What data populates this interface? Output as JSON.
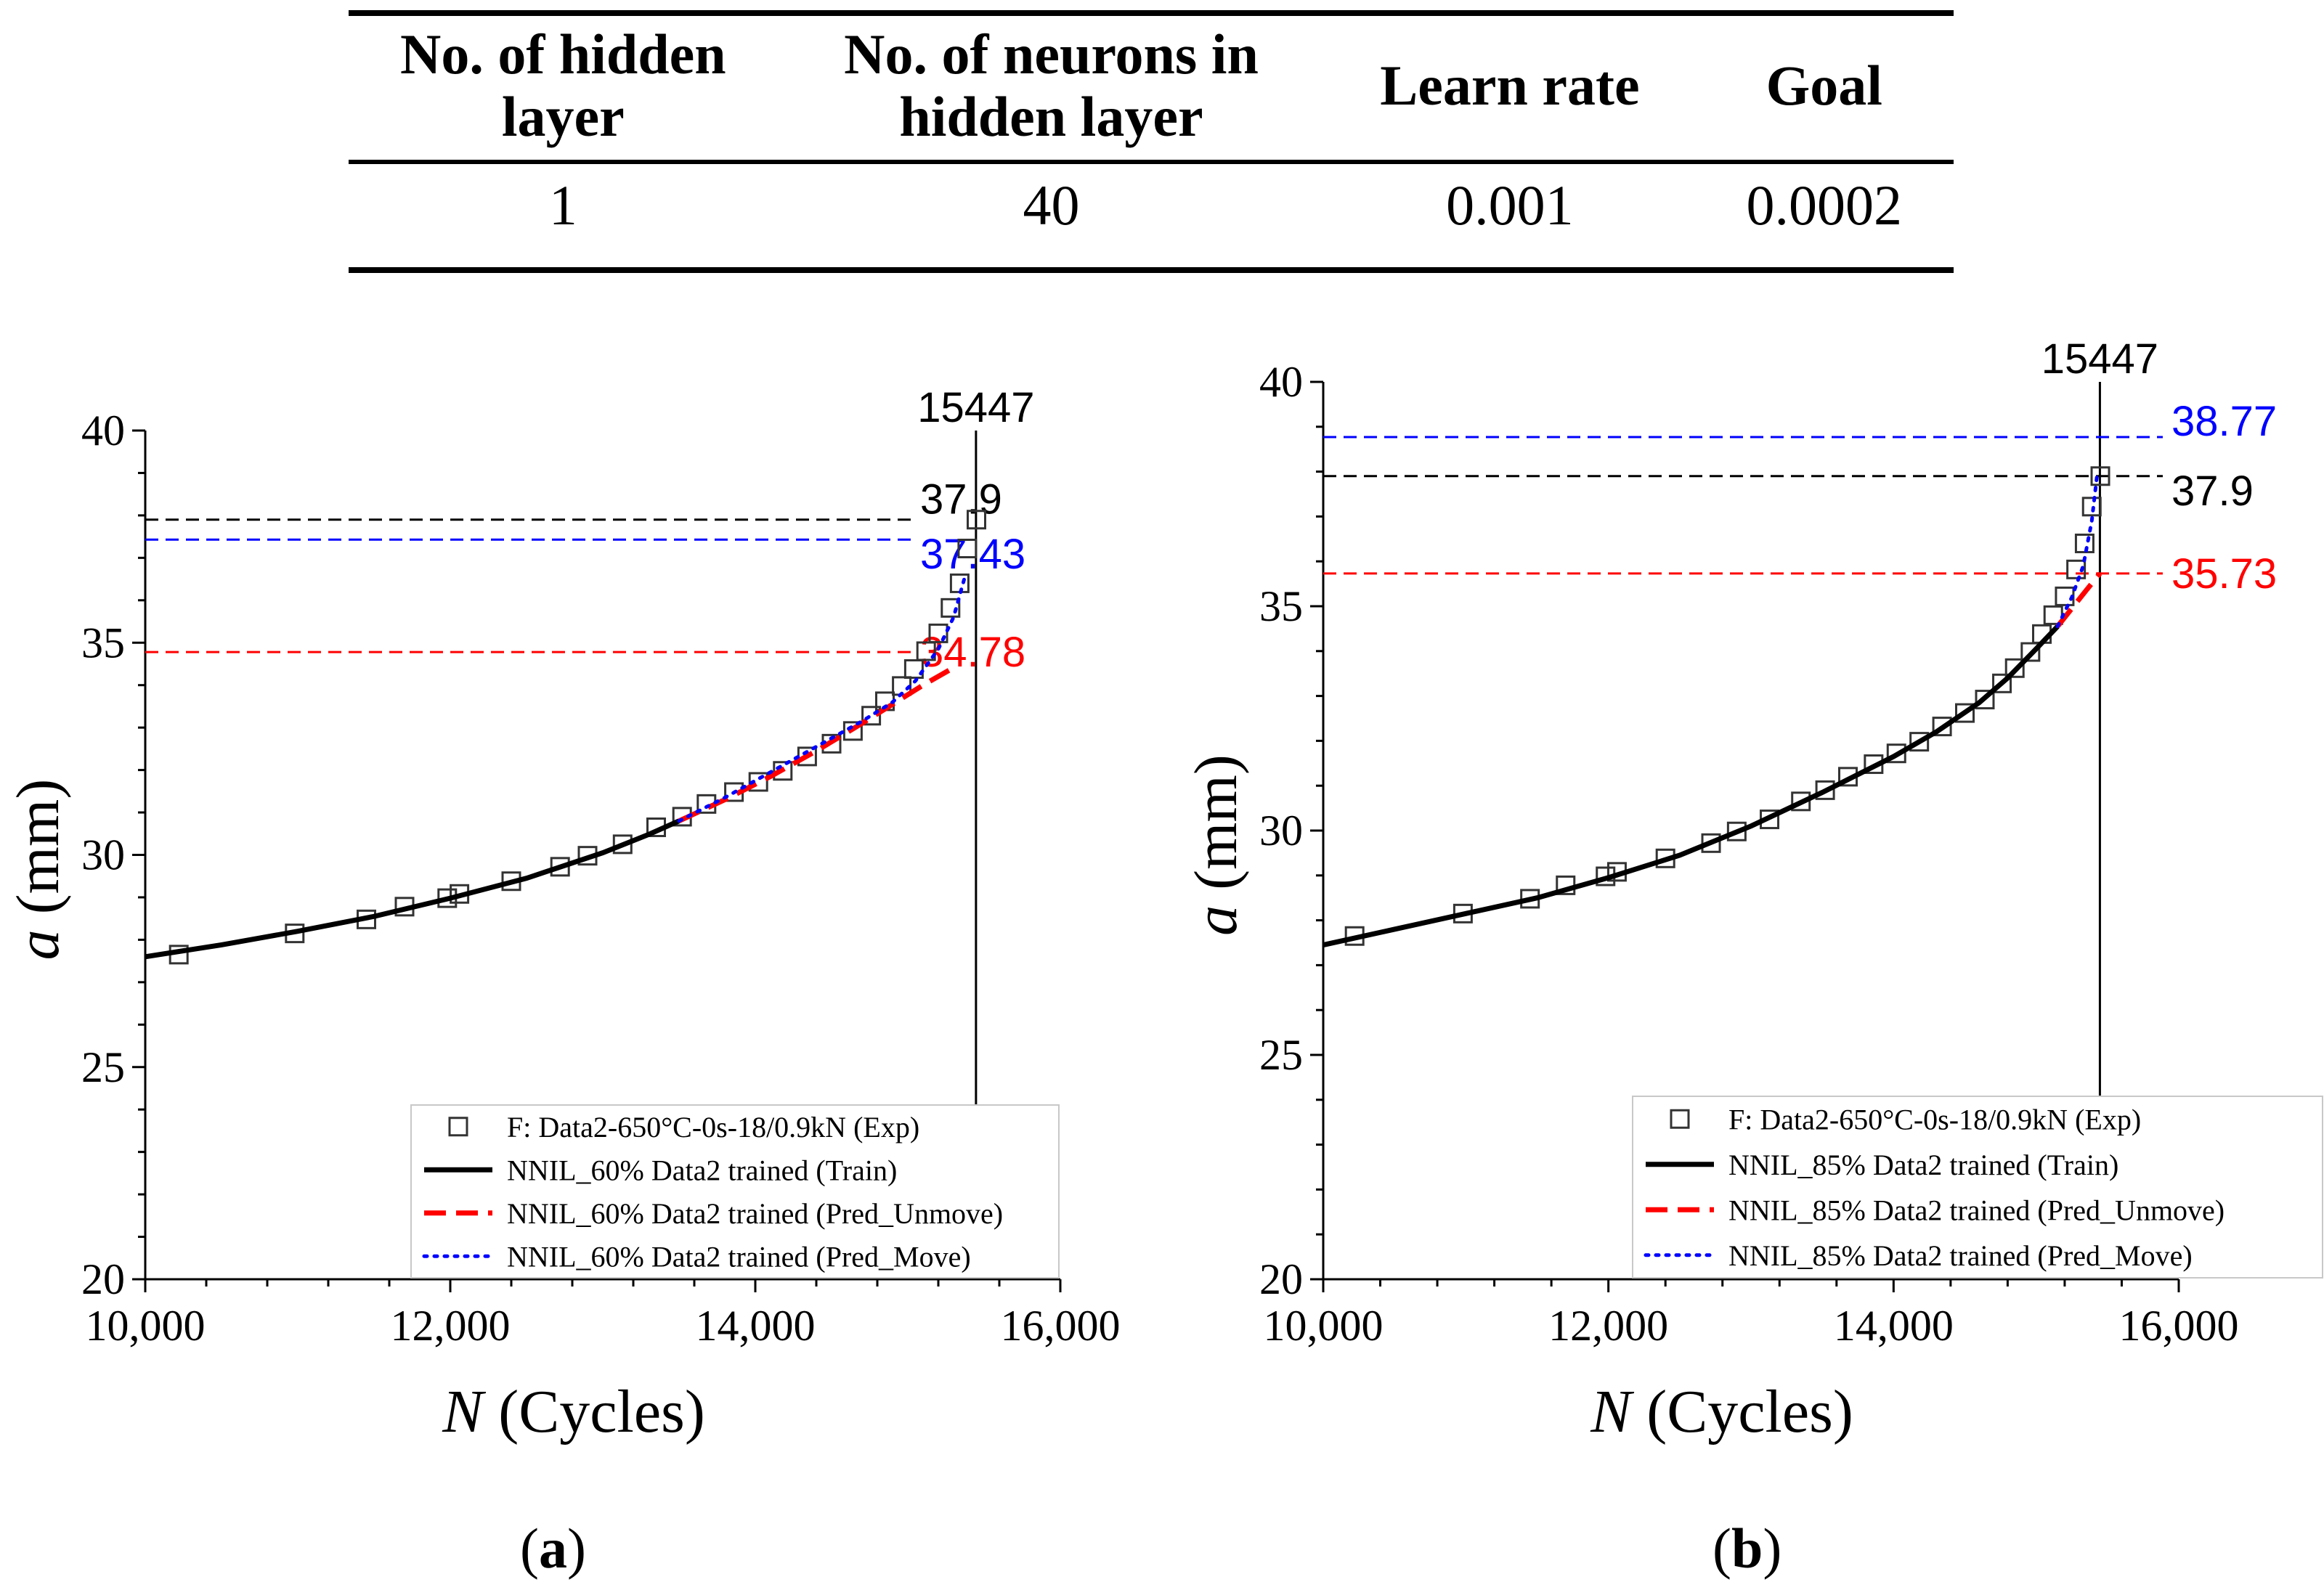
{
  "table": {
    "headers": [
      "No. of hidden layer",
      "No. of neurons in hidden layer",
      "Learn rate",
      "Goal"
    ],
    "rows": [
      [
        "1",
        "40",
        "0.001",
        "0.0002"
      ]
    ]
  },
  "colors": {
    "train": "#000000",
    "pred_unmove": "#ff0000",
    "pred_move": "#0000ff",
    "exp": "#333333"
  },
  "chart_data": [
    {
      "type": "line",
      "panel": "a",
      "panel_label": "a",
      "xlabel_italic": "N",
      "xlabel_rest": "(Cycles)",
      "ylabel_italic": "a",
      "ylabel_rest": "(mm)",
      "xlim": [
        10000,
        16000
      ],
      "ylim": [
        20,
        40
      ],
      "xticks": [
        10000,
        12000,
        14000,
        16000
      ],
      "xtick_labels": [
        "10,000",
        "12,000",
        "14,000",
        "16,000"
      ],
      "yticks": [
        20,
        25,
        30,
        35,
        40
      ],
      "ytick_labels": [
        "20",
        "25",
        "30",
        "35",
        "40"
      ],
      "vline": {
        "x": 15447,
        "label": "15447"
      },
      "hlines": [
        {
          "y": 37.9,
          "label": "37.9",
          "color": "#000000"
        },
        {
          "y": 37.43,
          "label": "37.43",
          "color": "#0000ff"
        },
        {
          "y": 34.78,
          "label": "34.78",
          "color": "#ff0000"
        }
      ],
      "legend": [
        {
          "marker": "square",
          "text": "F: Data2-650°C-0s-18/0.9kN (Exp)"
        },
        {
          "marker": "solid",
          "text": "NNIL_60% Data2 trained (Train)"
        },
        {
          "marker": "dashed",
          "text": "NNIL_60% Data2 trained (Pred_Unmove)"
        },
        {
          "marker": "dotted",
          "text": "NNIL_60% Data2 trained (Pred_Move)"
        }
      ],
      "series": [
        {
          "name": "Exp",
          "style": "square",
          "x": [
            10220,
            10980,
            11450,
            11700,
            11980,
            12060,
            12400,
            12720,
            12900,
            13130,
            13350,
            13520,
            13680,
            13860,
            14020,
            14180,
            14340,
            14500,
            14640,
            14760,
            14850,
            14960,
            15040,
            15120,
            15200,
            15280,
            15340,
            15390,
            15450
          ],
          "y": [
            27.65,
            28.15,
            28.48,
            28.78,
            28.98,
            29.08,
            29.38,
            29.72,
            29.98,
            30.25,
            30.65,
            30.9,
            31.2,
            31.48,
            31.72,
            31.98,
            32.32,
            32.62,
            32.92,
            33.28,
            33.62,
            33.98,
            34.38,
            34.8,
            35.22,
            35.82,
            36.4,
            37.22,
            37.9
          ]
        },
        {
          "name": "Train",
          "style": "solid",
          "x": [
            10000,
            10500,
            11000,
            11500,
            12000,
            12500,
            13000,
            13300,
            13500
          ],
          "y": [
            27.6,
            27.88,
            28.2,
            28.55,
            28.98,
            29.45,
            30.05,
            30.48,
            30.8
          ]
        },
        {
          "name": "Pred_Unmove",
          "style": "dashed",
          "x": [
            13500,
            13800,
            14100,
            14400,
            14700,
            14900,
            15100,
            15270
          ],
          "y": [
            30.8,
            31.3,
            31.85,
            32.45,
            33.1,
            33.55,
            34.0,
            34.35
          ]
        },
        {
          "name": "Pred_Move",
          "style": "dotted",
          "x": [
            13500,
            13800,
            14100,
            14400,
            14700,
            14900,
            15050,
            15200,
            15300,
            15370
          ],
          "y": [
            30.8,
            31.35,
            31.95,
            32.55,
            33.15,
            33.6,
            34.1,
            34.85,
            35.6,
            36.5
          ]
        }
      ]
    },
    {
      "type": "line",
      "panel": "b",
      "panel_label": "b",
      "xlabel_italic": "N",
      "xlabel_rest": "(Cycles)",
      "ylabel_italic": "a",
      "ylabel_rest": "(mm)",
      "xlim": [
        10000,
        16000
      ],
      "ylim": [
        20,
        40
      ],
      "xticks": [
        10000,
        12000,
        14000,
        16000
      ],
      "xtick_labels": [
        "10,000",
        "12,000",
        "14,000",
        "16,000"
      ],
      "yticks": [
        20,
        25,
        30,
        35,
        40
      ],
      "ytick_labels": [
        "20",
        "25",
        "30",
        "35",
        "40"
      ],
      "vline": {
        "x": 15447,
        "label": "15447"
      },
      "hlines": [
        {
          "y": 38.77,
          "label": "38.77",
          "color": "#0000ff"
        },
        {
          "y": 37.9,
          "label": "37.9",
          "color": "#000000"
        },
        {
          "y": 35.73,
          "label": "35.73",
          "color": "#ff0000"
        }
      ],
      "legend": [
        {
          "marker": "square",
          "text": "F: Data2-650°C-0s-18/0.9kN (Exp)"
        },
        {
          "marker": "solid",
          "text": "NNIL_85% Data2 trained (Train)"
        },
        {
          "marker": "dashed",
          "text": "NNIL_85% Data2 trained (Pred_Unmove)"
        },
        {
          "marker": "dotted",
          "text": "NNIL_85% Data2 trained (Pred_Move)"
        }
      ],
      "series": [
        {
          "name": "Exp",
          "style": "square",
          "x": [
            10220,
            10980,
            11450,
            11700,
            11980,
            12060,
            12400,
            12720,
            12900,
            13130,
            13350,
            13520,
            13680,
            13860,
            14020,
            14180,
            14340,
            14500,
            14640,
            14760,
            14850,
            14960,
            15040,
            15120,
            15200,
            15280,
            15340,
            15390,
            15450
          ],
          "y": [
            27.65,
            28.15,
            28.48,
            28.78,
            28.98,
            29.08,
            29.38,
            29.72,
            29.98,
            30.25,
            30.65,
            30.9,
            31.2,
            31.48,
            31.72,
            31.98,
            32.32,
            32.62,
            32.92,
            33.28,
            33.62,
            33.98,
            34.38,
            34.8,
            35.22,
            35.82,
            36.4,
            37.22,
            37.9
          ]
        },
        {
          "name": "Train",
          "style": "solid",
          "x": [
            10000,
            10500,
            11000,
            11500,
            12000,
            12500,
            13000,
            13500,
            14000,
            14300,
            14600,
            14800,
            15000,
            15150
          ],
          "y": [
            27.45,
            27.8,
            28.15,
            28.5,
            28.95,
            29.45,
            30.1,
            30.85,
            31.65,
            32.2,
            32.85,
            33.4,
            34.05,
            34.55
          ]
        },
        {
          "name": "Pred_Unmove",
          "style": "dashed",
          "x": [
            15150,
            15250,
            15350,
            15447
          ],
          "y": [
            34.55,
            34.95,
            35.35,
            35.73
          ]
        },
        {
          "name": "Pred_Move",
          "style": "dotted",
          "x": [
            15150,
            15250,
            15330,
            15390,
            15430
          ],
          "y": [
            34.55,
            35.2,
            35.9,
            36.9,
            38.0
          ]
        }
      ]
    }
  ]
}
